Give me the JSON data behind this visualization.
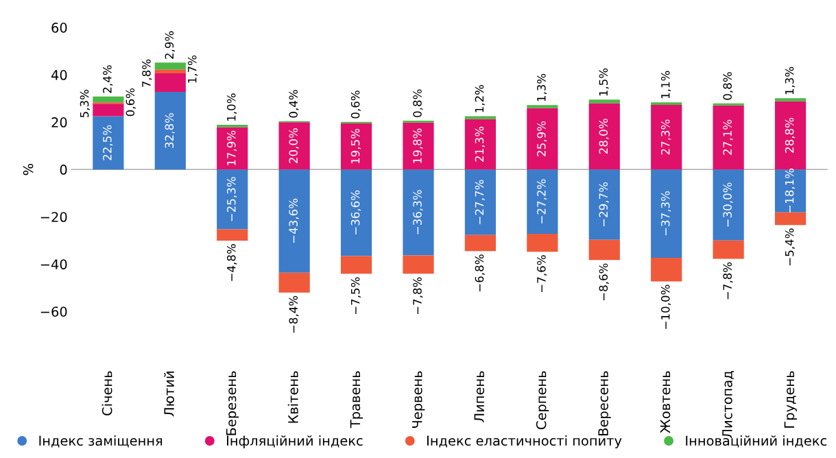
{
  "chart_data": {
    "type": "bar",
    "stacked": true,
    "ylabel": "%",
    "ylim": [
      -60,
      60
    ],
    "yticks": [
      {
        "value": -60,
        "label": "−60"
      },
      {
        "value": -40,
        "label": "−40"
      },
      {
        "value": -20,
        "label": "−20"
      },
      0,
      20,
      40,
      60
    ],
    "categories": [
      "Січень",
      "Лютий",
      "Березень",
      "Квітень",
      "Травень",
      "Червень",
      "Липень",
      "Серпень",
      "Вересень",
      "Жовтень",
      "Листопад",
      "Грудень"
    ],
    "series": [
      {
        "name": "Індекс заміщення",
        "color": "#3d7cc9",
        "values": [
          22.5,
          32.8,
          -25.3,
          -43.6,
          -36.6,
          -36.3,
          -27.7,
          -27.2,
          -29.7,
          -37.3,
          -30.0,
          -18.1
        ],
        "value_labels": [
          "22,5%",
          "32,8%",
          "−25,3%",
          "−43,6%",
          "−36,6%",
          "−36,3%",
          "−27,7%",
          "−27,2%",
          "−29,7%",
          "−37,3%",
          "−30,0%",
          "−18,1%"
        ]
      },
      {
        "name": "Інфляційний індекс",
        "color": "#e0116a",
        "values": [
          5.3,
          7.8,
          17.9,
          20.0,
          19.5,
          19.8,
          21.3,
          25.9,
          28.0,
          27.3,
          27.1,
          28.8
        ],
        "value_labels": [
          "5,3%",
          "7,8%",
          "17,9%",
          "20,0%",
          "19,5%",
          "19,8%",
          "21,3%",
          "25,9%",
          "28,0%",
          "27,3%",
          "27,1%",
          "28,8%"
        ]
      },
      {
        "name": "Індекс еластичності попиту",
        "color": "#f05a3a",
        "values": [
          0.6,
          1.7,
          -4.8,
          -8.4,
          -7.5,
          -7.8,
          -6.8,
          -7.6,
          -8.6,
          -10.0,
          -7.8,
          -5.4
        ],
        "value_labels": [
          "0,6%",
          "1,7%",
          "−4,8%",
          "−8,4%",
          "−7,5%",
          "−7,8%",
          "−6,8%",
          "−7,6%",
          "−8,6%",
          "−10,0%",
          "−7,8%",
          "−5,4%"
        ]
      },
      {
        "name": "Інноваційний індекс",
        "color": "#4cb848",
        "values": [
          2.4,
          2.9,
          1.0,
          0.4,
          0.6,
          0.8,
          1.2,
          1.3,
          1.5,
          1.1,
          0.8,
          1.3
        ],
        "value_labels": [
          "2,4%",
          "2,9%",
          "1,0%",
          "0,4%",
          "0,6%",
          "0,8%",
          "1,2%",
          "1,3%",
          "1,5%",
          "1,1%",
          "0,8%",
          "1,3%"
        ]
      }
    ],
    "ref_lines": [
      {
        "axis": "y",
        "value": 0,
        "color": "#999999"
      }
    ],
    "grid": false,
    "legend": "bottom",
    "marker": "circle"
  }
}
